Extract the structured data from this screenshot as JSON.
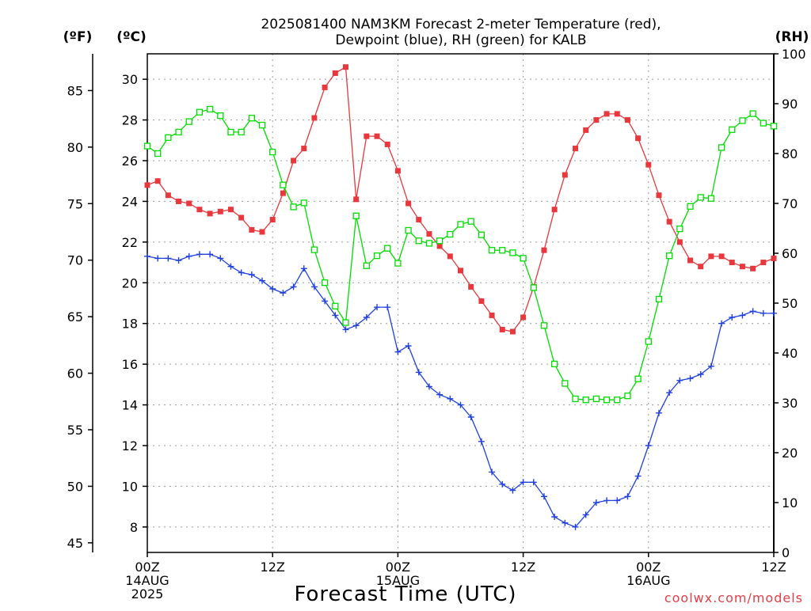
{
  "chart_data": {
    "type": "line",
    "title_line1": "2025081400 NAM3KM Forecast 2-meter Temperature (red),",
    "title_line2": "Dewpoint (blue), RH (green) for KALB",
    "xlabel": "Forecast Time (UTC)",
    "credit": "coolwx.com/models",
    "units": {
      "fahrenheit": "(ºF)",
      "celsius": "(ºC)",
      "rh": "(RH)"
    },
    "x_unit": "forecast hour",
    "xlim": [
      0,
      60
    ],
    "x_ticks": [
      {
        "hour": 0,
        "label": "00Z",
        "date1": "14AUG",
        "date2": "2025"
      },
      {
        "hour": 12,
        "label": "12Z",
        "date1": "",
        "date2": ""
      },
      {
        "hour": 24,
        "label": "00Z",
        "date1": "15AUG",
        "date2": ""
      },
      {
        "hour": 36,
        "label": "12Z",
        "date1": "",
        "date2": ""
      },
      {
        "hour": 48,
        "label": "00Z",
        "date1": "16AUG",
        "date2": ""
      },
      {
        "hour": 60,
        "label": "12Z",
        "date1": "",
        "date2": ""
      }
    ],
    "celsius_axis": {
      "lim": [
        6.75,
        31.25
      ],
      "ticks": [
        8,
        10,
        12,
        14,
        16,
        18,
        20,
        22,
        24,
        26,
        28,
        30
      ]
    },
    "fahrenheit_axis": {
      "lim": [
        44.15,
        88.25
      ],
      "ticks": [
        45,
        50,
        55,
        60,
        65,
        70,
        75,
        80,
        85
      ]
    },
    "rh_axis": {
      "lim": [
        0,
        100
      ],
      "ticks": [
        0,
        10,
        20,
        30,
        40,
        50,
        60,
        70,
        80,
        90,
        100
      ]
    },
    "grid": true,
    "x": [
      0,
      1,
      2,
      3,
      4,
      5,
      6,
      7,
      8,
      9,
      10,
      11,
      12,
      13,
      14,
      15,
      16,
      17,
      18,
      19,
      20,
      21,
      22,
      23,
      24,
      25,
      26,
      27,
      28,
      29,
      30,
      31,
      32,
      33,
      34,
      35,
      36,
      37,
      38,
      39,
      40,
      41,
      42,
      43,
      44,
      45,
      46,
      47,
      48,
      49,
      50,
      51,
      52,
      53,
      54,
      55,
      56,
      57,
      58,
      59,
      60
    ],
    "series": [
      {
        "key": "temperature",
        "unit": "C",
        "color": "#e8383d",
        "marker": "filled-square",
        "values": [
          24.8,
          25.0,
          24.3,
          24.0,
          23.9,
          23.6,
          23.4,
          23.5,
          23.6,
          23.2,
          22.6,
          22.5,
          23.1,
          24.4,
          26.0,
          26.6,
          28.1,
          29.6,
          30.3,
          30.6,
          24.1,
          27.2,
          27.2,
          26.8,
          25.5,
          23.9,
          23.1,
          22.4,
          21.8,
          21.3,
          20.6,
          19.8,
          19.1,
          18.4,
          17.7,
          17.6,
          18.3,
          19.8,
          21.6,
          23.6,
          25.3,
          26.6,
          27.5,
          28.0,
          28.3,
          28.3,
          28.0,
          27.1,
          25.8,
          24.3,
          23.0,
          22.0,
          21.1,
          20.8,
          21.3,
          21.3,
          21.0,
          20.8,
          20.7,
          21.0,
          21.2
        ]
      },
      {
        "key": "dewpoint",
        "unit": "C",
        "color": "#2040e0",
        "marker": "plus",
        "values": [
          21.3,
          21.2,
          21.2,
          21.1,
          21.3,
          21.4,
          21.4,
          21.2,
          20.8,
          20.5,
          20.4,
          20.1,
          19.7,
          19.5,
          19.8,
          20.7,
          19.8,
          19.1,
          18.4,
          17.7,
          17.9,
          18.3,
          18.8,
          18.8,
          16.6,
          16.9,
          15.6,
          14.9,
          14.5,
          14.3,
          14.0,
          13.4,
          12.2,
          10.7,
          10.1,
          9.8,
          10.2,
          10.2,
          9.5,
          8.5,
          8.2,
          8.0,
          8.6,
          9.2,
          9.3,
          9.3,
          9.5,
          10.5,
          12.0,
          13.6,
          14.6,
          15.2,
          15.3,
          15.5,
          15.9,
          18.0,
          18.3,
          18.4,
          18.6,
          18.5,
          18.5
        ]
      },
      {
        "key": "rh",
        "unit": "%",
        "color": "#00dd00",
        "marker": "open-square",
        "values": [
          81.5,
          80.0,
          83.2,
          84.3,
          86.4,
          88.3,
          88.9,
          87.6,
          84.3,
          84.3,
          87.1,
          85.7,
          80.3,
          73.7,
          69.3,
          70.1,
          60.7,
          54.1,
          49.4,
          46.1,
          67.5,
          57.5,
          59.5,
          61.0,
          58.0,
          64.6,
          62.5,
          62.0,
          62.5,
          63.8,
          65.8,
          66.4,
          63.7,
          60.6,
          60.6,
          60.1,
          59.0,
          53.1,
          45.5,
          37.8,
          33.9,
          30.8,
          30.6,
          30.8,
          30.6,
          30.6,
          31.4,
          34.8,
          42.3,
          50.8,
          59.5,
          64.9,
          69.4,
          71.2,
          71.0,
          81.2,
          84.8,
          86.6,
          88.0,
          86.1,
          85.5
        ]
      }
    ]
  }
}
